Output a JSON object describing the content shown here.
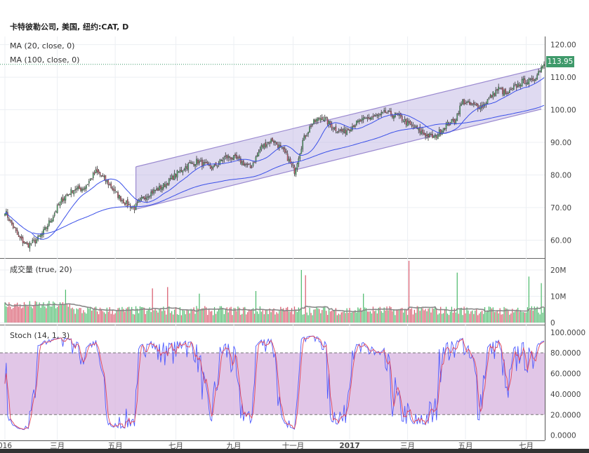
{
  "title": "卡特彼勒公司, 美国, 纽约:CAT, D",
  "last_price_label": "113.95",
  "colors": {
    "up": "#4cba6b",
    "down": "#d8586b",
    "ma20": "#3b50e8",
    "ma100": "#3b50e8",
    "channel_fill": "#b9ace0",
    "channel_line": "#9b8ad0",
    "volume_ma": "#888888",
    "stoch_k": "#4f5bff",
    "stoch_d": "#e0455a",
    "stoch_band": "#d7b3df",
    "price_tag": "#3f9a6b"
  },
  "chart_data": [
    {
      "type": "candlestick",
      "pane": "price",
      "legend": [
        "MA (20, close, 0)",
        "MA (100, close, 0)"
      ],
      "y_ticks": [
        60,
        70,
        80,
        90,
        100,
        110,
        120
      ],
      "y_tick_labels": [
        "60.00",
        "70.00",
        "80.00",
        "90.00",
        "100.00",
        "110.00",
        "120.00"
      ],
      "ylim": [
        54.5,
        122.5
      ],
      "x_ticks": [
        {
          "label": "016",
          "idx": 0
        },
        {
          "label": "三月",
          "idx": 38
        },
        {
          "label": "五月",
          "idx": 80
        },
        {
          "label": "七月",
          "idx": 124
        },
        {
          "label": "九月",
          "idx": 166
        },
        {
          "label": "十一月",
          "idx": 209
        },
        {
          "label": "2017",
          "idx": 250
        },
        {
          "label": "三月",
          "idx": 292
        },
        {
          "label": "五月",
          "idx": 334
        },
        {
          "label": "七月",
          "idx": 378
        }
      ],
      "n_bars": 392,
      "close_anchors": [
        [
          0,
          69
        ],
        [
          4,
          65
        ],
        [
          10,
          60
        ],
        [
          16,
          58.5
        ],
        [
          22,
          60.5
        ],
        [
          28,
          63
        ],
        [
          35,
          67
        ],
        [
          42,
          72
        ],
        [
          50,
          76
        ],
        [
          58,
          77
        ],
        [
          66,
          80.5
        ],
        [
          72,
          78
        ],
        [
          80,
          75
        ],
        [
          88,
          72
        ],
        [
          94,
          70
        ],
        [
          100,
          72
        ],
        [
          106,
          74
        ],
        [
          114,
          77
        ],
        [
          122,
          80
        ],
        [
          132,
          82
        ],
        [
          140,
          84
        ],
        [
          150,
          83
        ],
        [
          160,
          85
        ],
        [
          170,
          84
        ],
        [
          178,
          83
        ],
        [
          186,
          89
        ],
        [
          194,
          90
        ],
        [
          204,
          86
        ],
        [
          210,
          82
        ],
        [
          216,
          91
        ],
        [
          222,
          95
        ],
        [
          230,
          97
        ],
        [
          238,
          95
        ],
        [
          246,
          94
        ],
        [
          252,
          95
        ],
        [
          260,
          96
        ],
        [
          268,
          98
        ],
        [
          276,
          100
        ],
        [
          284,
          98
        ],
        [
          292,
          95
        ],
        [
          300,
          94
        ],
        [
          306,
          93
        ],
        [
          312,
          92
        ],
        [
          318,
          94
        ],
        [
          326,
          96
        ],
        [
          332,
          103
        ],
        [
          340,
          102
        ],
        [
          346,
          101
        ],
        [
          352,
          103
        ],
        [
          358,
          106
        ],
        [
          364,
          105
        ],
        [
          370,
          108
        ],
        [
          376,
          109
        ],
        [
          382,
          108
        ],
        [
          386,
          110
        ],
        [
          390,
          113.95
        ]
      ],
      "last": 113.95,
      "channel": {
        "start_idx": 95,
        "end_idx": 389,
        "upper": [
          82.5,
          112.8
        ],
        "lower": [
          69.5,
          100.2
        ]
      }
    },
    {
      "type": "bar",
      "pane": "volume",
      "legend": "成交量 (true, 20)",
      "y_ticks": [
        0,
        10,
        20
      ],
      "y_tick_labels": [
        "0",
        "10M",
        "20M"
      ],
      "unit": "M",
      "ylim": [
        0,
        24
      ],
      "spikes": [
        [
          44,
          12.5
        ],
        [
          107,
          13
        ],
        [
          118,
          13.5
        ],
        [
          141,
          11
        ],
        [
          182,
          12
        ],
        [
          215,
          20
        ],
        [
          218,
          18
        ],
        [
          260,
          11
        ],
        [
          293,
          23.5
        ],
        [
          328,
          19
        ],
        [
          380,
          17.5
        ],
        [
          389,
          15
        ]
      ]
    },
    {
      "type": "line",
      "pane": "stochastic",
      "legend": "Stoch (14, 1, 3)",
      "y_ticks": [
        0,
        20,
        40,
        60,
        80,
        100
      ],
      "y_tick_labels": [
        "0.0000",
        "20.0000",
        "40.0000",
        "60.0000",
        "80.0000",
        "100.0000"
      ],
      "ylim": [
        -5,
        106
      ],
      "band": [
        20,
        80
      ]
    }
  ]
}
